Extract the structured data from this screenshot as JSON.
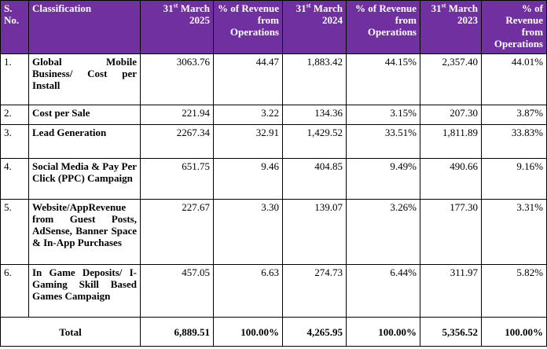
{
  "header": {
    "sno": "S. No.",
    "classification": "Classification",
    "col1": {
      "pre": "31",
      "sup": "st",
      "post": " March 2025"
    },
    "col2": "% of Revenue from Operations",
    "col3": {
      "pre": "31",
      "sup": "st",
      "post": " March 2024"
    },
    "col4": "% of Revenue from Operations",
    "col5": {
      "pre": "31",
      "sup": "st",
      "post": " March 2023"
    },
    "col6": "% of Revenue from Operations"
  },
  "rows": [
    {
      "sno": "1.",
      "classification": "Global Mobile Business/ Cost per Install",
      "v2025": "3063.76",
      "p2025": "44.47",
      "v2024": "1,883.42",
      "p2024": "44.15%",
      "v2023": "2,357.40",
      "p2023": "44.01%"
    },
    {
      "sno": "2.",
      "classification": "Cost per Sale",
      "v2025": "221.94",
      "p2025": "3.22",
      "v2024": "134.36",
      "p2024": "3.15%",
      "v2023": "207.30",
      "p2023": "3.87%"
    },
    {
      "sno": "3.",
      "classification": "Lead Generation",
      "v2025": "2267.34",
      "p2025": "32.91",
      "v2024": "1,429.52",
      "p2024": "33.51%",
      "v2023": "1,811.89",
      "p2023": "33.83%"
    },
    {
      "sno": "4.",
      "classification": "Social Media & Pay Per Click (PPC) Campaign",
      "v2025": "651.75",
      "p2025": "9.46",
      "v2024": "404.85",
      "p2024": "9.49%",
      "v2023": "490.66",
      "p2023": "9.16%"
    },
    {
      "sno": "5.",
      "classification": "Website/AppRevenue from Guest Posts, AdSense, Banner Space & In-App Purchases",
      "v2025": "227.67",
      "p2025": "3.30",
      "v2024": "139.07",
      "p2024": "3.26%",
      "v2023": "177.30",
      "p2023": "3.31%"
    },
    {
      "sno": "6.",
      "classification": "In Game Deposits/ I-Gaming Skill Based Games Campaign",
      "v2025": "457.05",
      "p2025": "6.63",
      "v2024": "274.73",
      "p2024": "6.44%",
      "v2023": "311.97",
      "p2023": "5.82%"
    }
  ],
  "total": {
    "label": "Total",
    "v2025": "6,889.51",
    "p2025": "100.00%",
    "v2024": "4,265.95",
    "p2024": "100.00%",
    "v2023": "5,356.52",
    "p2023": "100.00%"
  },
  "colors": {
    "header_bg": "#7030a0",
    "header_text": "#ffffff"
  }
}
